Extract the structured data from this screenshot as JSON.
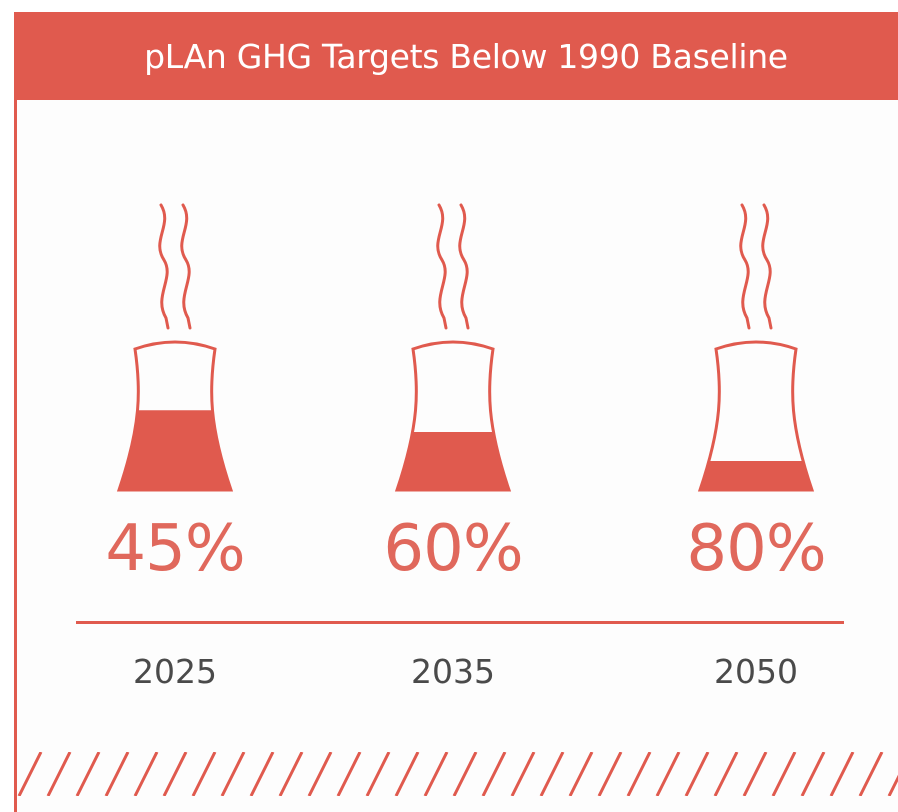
{
  "banner": {
    "title": "pLAn GHG Targets Below 1990 Baseline"
  },
  "colors": {
    "accent": "#e05a4e",
    "text_dark": "#4a4a4a",
    "background": "#ffffff"
  },
  "chart_data": {
    "type": "bar",
    "title": "pLAn GHG Targets Below 1990 Baseline",
    "categories": [
      "2025",
      "2035",
      "2050"
    ],
    "values": [
      45,
      60,
      80
    ],
    "value_labels": [
      "45%",
      "60%",
      "80%"
    ],
    "unit": "%",
    "ylim": [
      0,
      100
    ],
    "encoding": "each value is shown as a cooling tower icon whose filled portion is (100 - value)% of the tower height"
  }
}
